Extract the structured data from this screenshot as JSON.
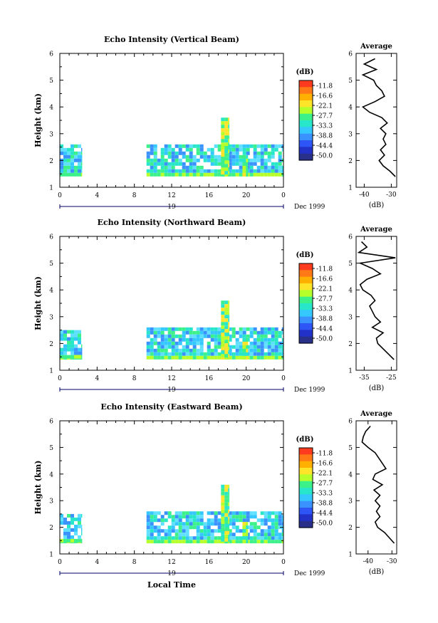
{
  "figure": {
    "date_label": "Dec 1999",
    "xlabel_bottom": "Local Time",
    "colorbar_unit": "(dB)",
    "colorbar_ticks": [
      "-11.8",
      "-16.6",
      "-22.1",
      "-27.7",
      "-33.3",
      "-38.8",
      "-44.4",
      "-50.0"
    ],
    "colorbar_colors": [
      "#ff3b1f",
      "#ff7a16",
      "#ffb000",
      "#ffe42a",
      "#b6ff2a",
      "#3cf08a",
      "#27e6c9",
      "#34c8ff",
      "#3a92ff",
      "#2e55f5",
      "#2231c8",
      "#28308a"
    ],
    "avg_title": "Average",
    "avg_xlabel": "(dB)"
  },
  "chart_data": [
    {
      "type": "heatmap",
      "title": "Echo Intensity (Vertical Beam)",
      "xlabel": "",
      "ylabel": "Height (km)",
      "xticks": [
        "0",
        "4",
        "8",
        "12",
        "16",
        "20",
        "0"
      ],
      "xlim": [
        0,
        24
      ],
      "ylim": [
        1,
        6
      ],
      "yticks": [
        "1",
        "2",
        "3",
        "4",
        "5",
        "6"
      ],
      "day_label": "19",
      "blocks": [
        {
          "t0": 0,
          "t1": 2.4,
          "h0": 1.4,
          "h1": 2.6,
          "level": "mid"
        },
        {
          "t0": 9.3,
          "t1": 24,
          "h0": 1.4,
          "h1": 2.6,
          "level": "mid"
        },
        {
          "t0": 17.3,
          "t1": 18.2,
          "h0": 1.4,
          "h1": 3.6,
          "level": "high"
        },
        {
          "t0": 19.6,
          "t1": 20.2,
          "h0": 1.4,
          "h1": 2.2,
          "level": "high"
        }
      ],
      "average": {
        "xticks": [
          "-40",
          "-30"
        ],
        "xlim": [
          -43,
          -28
        ],
        "h": [
          1.4,
          1.6,
          1.8,
          2.0,
          2.2,
          2.4,
          2.6,
          2.8,
          3.0,
          3.2,
          3.4,
          3.6,
          3.8,
          4.0,
          4.2,
          4.4,
          4.6,
          4.8,
          5.0,
          5.2,
          5.4,
          5.6,
          5.8
        ],
        "db": [
          -28.5,
          -30.5,
          -33,
          -34.5,
          -32.5,
          -34,
          -32,
          -33,
          -32,
          -34,
          -31.5,
          -33.5,
          -38,
          -40.5,
          -36,
          -32.5,
          -33.5,
          -35.5,
          -36.5,
          -40.5,
          -35.5,
          -40,
          -36
        ]
      }
    },
    {
      "type": "heatmap",
      "title": "Echo Intensity (Northward Beam)",
      "xlabel": "",
      "ylabel": "Height (km)",
      "xticks": [
        "0",
        "4",
        "8",
        "12",
        "16",
        "20",
        "0"
      ],
      "xlim": [
        0,
        24
      ],
      "ylim": [
        1,
        6
      ],
      "yticks": [
        "1",
        "2",
        "3",
        "4",
        "5",
        "6"
      ],
      "day_label": "19",
      "blocks": [
        {
          "t0": 0,
          "t1": 2.4,
          "h0": 1.4,
          "h1": 2.5,
          "level": "mid"
        },
        {
          "t0": 9.3,
          "t1": 24,
          "h0": 1.4,
          "h1": 2.6,
          "level": "mid"
        },
        {
          "t0": 17.3,
          "t1": 18.2,
          "h0": 1.4,
          "h1": 3.6,
          "level": "high"
        },
        {
          "t0": 19.6,
          "t1": 20.2,
          "h0": 1.4,
          "h1": 2.2,
          "level": "high"
        }
      ],
      "average": {
        "xticks": [
          "-35",
          "-25"
        ],
        "xlim": [
          -38,
          -23
        ],
        "h": [
          1.4,
          1.6,
          1.8,
          2.0,
          2.2,
          2.4,
          2.6,
          2.8,
          3.0,
          3.2,
          3.4,
          3.6,
          3.8,
          4.0,
          4.2,
          4.4,
          4.6,
          4.8,
          5.0,
          5.2,
          5.4,
          5.6,
          5.8
        ],
        "db": [
          -24,
          -26,
          -28,
          -30,
          -30.5,
          -28,
          -32,
          -29,
          -31,
          -32,
          -33,
          -31,
          -32.5,
          -35.5,
          -36.5,
          -34,
          -29,
          -32,
          -36.5,
          -23.5,
          -37,
          -34,
          -36
        ]
      }
    },
    {
      "type": "heatmap",
      "title": "Echo Intensity (Eastward Beam)",
      "xlabel": "Local Time",
      "ylabel": "Height (km)",
      "xticks": [
        "0",
        "4",
        "8",
        "12",
        "16",
        "20",
        "0"
      ],
      "xlim": [
        0,
        24
      ],
      "ylim": [
        1,
        6
      ],
      "yticks": [
        "1",
        "2",
        "3",
        "4",
        "5",
        "6"
      ],
      "day_label": "19",
      "blocks": [
        {
          "t0": 0,
          "t1": 2.4,
          "h0": 1.4,
          "h1": 2.5,
          "level": "mid"
        },
        {
          "t0": 9.3,
          "t1": 24,
          "h0": 1.4,
          "h1": 2.6,
          "level": "mid"
        },
        {
          "t0": 17.3,
          "t1": 18.2,
          "h0": 1.4,
          "h1": 3.6,
          "level": "high"
        },
        {
          "t0": 19.6,
          "t1": 20.2,
          "h0": 1.4,
          "h1": 2.2,
          "level": "high"
        }
      ],
      "average": {
        "xticks": [
          "-40",
          "-30"
        ],
        "xlim": [
          -45,
          -28
        ],
        "h": [
          1.4,
          1.6,
          1.8,
          2.0,
          2.2,
          2.4,
          2.6,
          2.8,
          3.0,
          3.2,
          3.4,
          3.6,
          3.8,
          4.0,
          4.2,
          4.4,
          4.6,
          4.8,
          5.0,
          5.2,
          5.4,
          5.6,
          5.8
        ],
        "db": [
          -29,
          -31,
          -33,
          -36,
          -37,
          -35,
          -36.5,
          -35,
          -37,
          -35,
          -37.5,
          -34,
          -38,
          -37,
          -32.5,
          -34,
          -35.5,
          -37,
          -40,
          -42.5,
          -42,
          -41,
          -39
        ]
      }
    }
  ]
}
